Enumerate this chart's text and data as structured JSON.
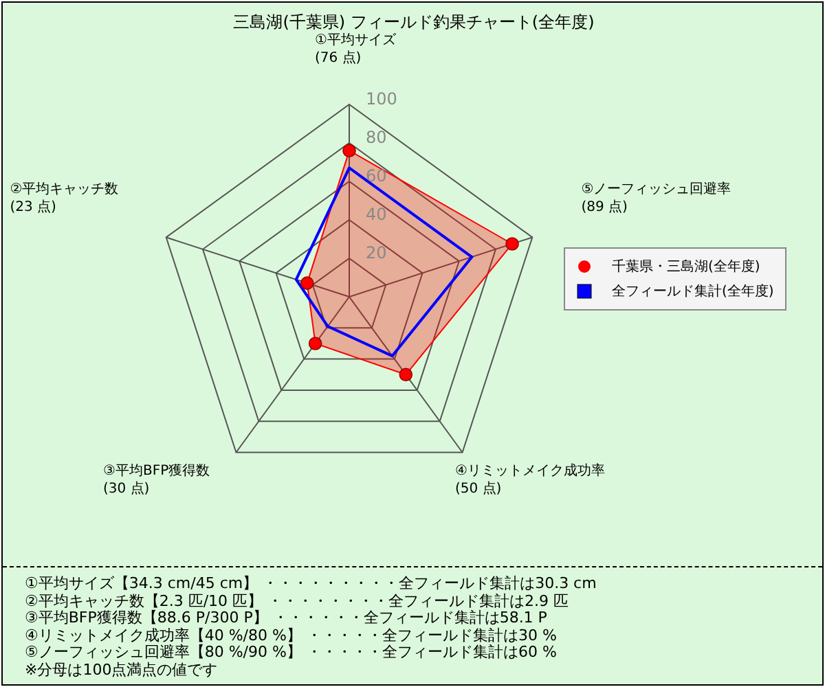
{
  "chart_data": {
    "type": "radar",
    "title": "三島湖(千葉県) フィールド釣果チャート(全年度)",
    "categories": [
      "①平均サイズ\n(76 点)",
      "⑤ノーフィッシュ回避率\n(89 点)",
      "④リミットメイク成功率\n(50 点)",
      "③平均BFP獲得数\n(30 点)",
      "②平均キャッチ数\n(23 点)"
    ],
    "series": [
      {
        "name": "千葉県・三島湖(全年度)",
        "color": "#ff0000",
        "values": [
          76,
          89,
          50,
          30,
          23
        ],
        "marker": "circle"
      },
      {
        "name": "全フィールド集計(全年度)",
        "color": "#0000ff",
        "values": [
          67,
          67,
          38,
          19,
          29
        ],
        "marker": "none"
      }
    ],
    "ylim": [
      0,
      100
    ],
    "yticks": [
      20,
      40,
      60,
      80,
      100
    ],
    "grid": true,
    "legend": "right",
    "annotations": [
      "①平均サイズ【34.3 cm/45 cm】 ・・・・・・・・・全フィールド集計は30.3 cm",
      "②平均キャッチ数【2.3 匹/10 匹】 ・・・・・・・・全フィールド集計は2.9 匹",
      "③平均BFP獲得数【88.6 P/300 P】 ・・・・・・全フィールド集計は58.1 P",
      "④リミットメイク成功率【40 %/80 %】 ・・・・・全フィールド集計は30 %",
      "⑤ノーフィッシュ回避率【80 %/90 %】 ・・・・・全フィールド集計は60 %",
      "※分母は100点満点の値です"
    ]
  }
}
